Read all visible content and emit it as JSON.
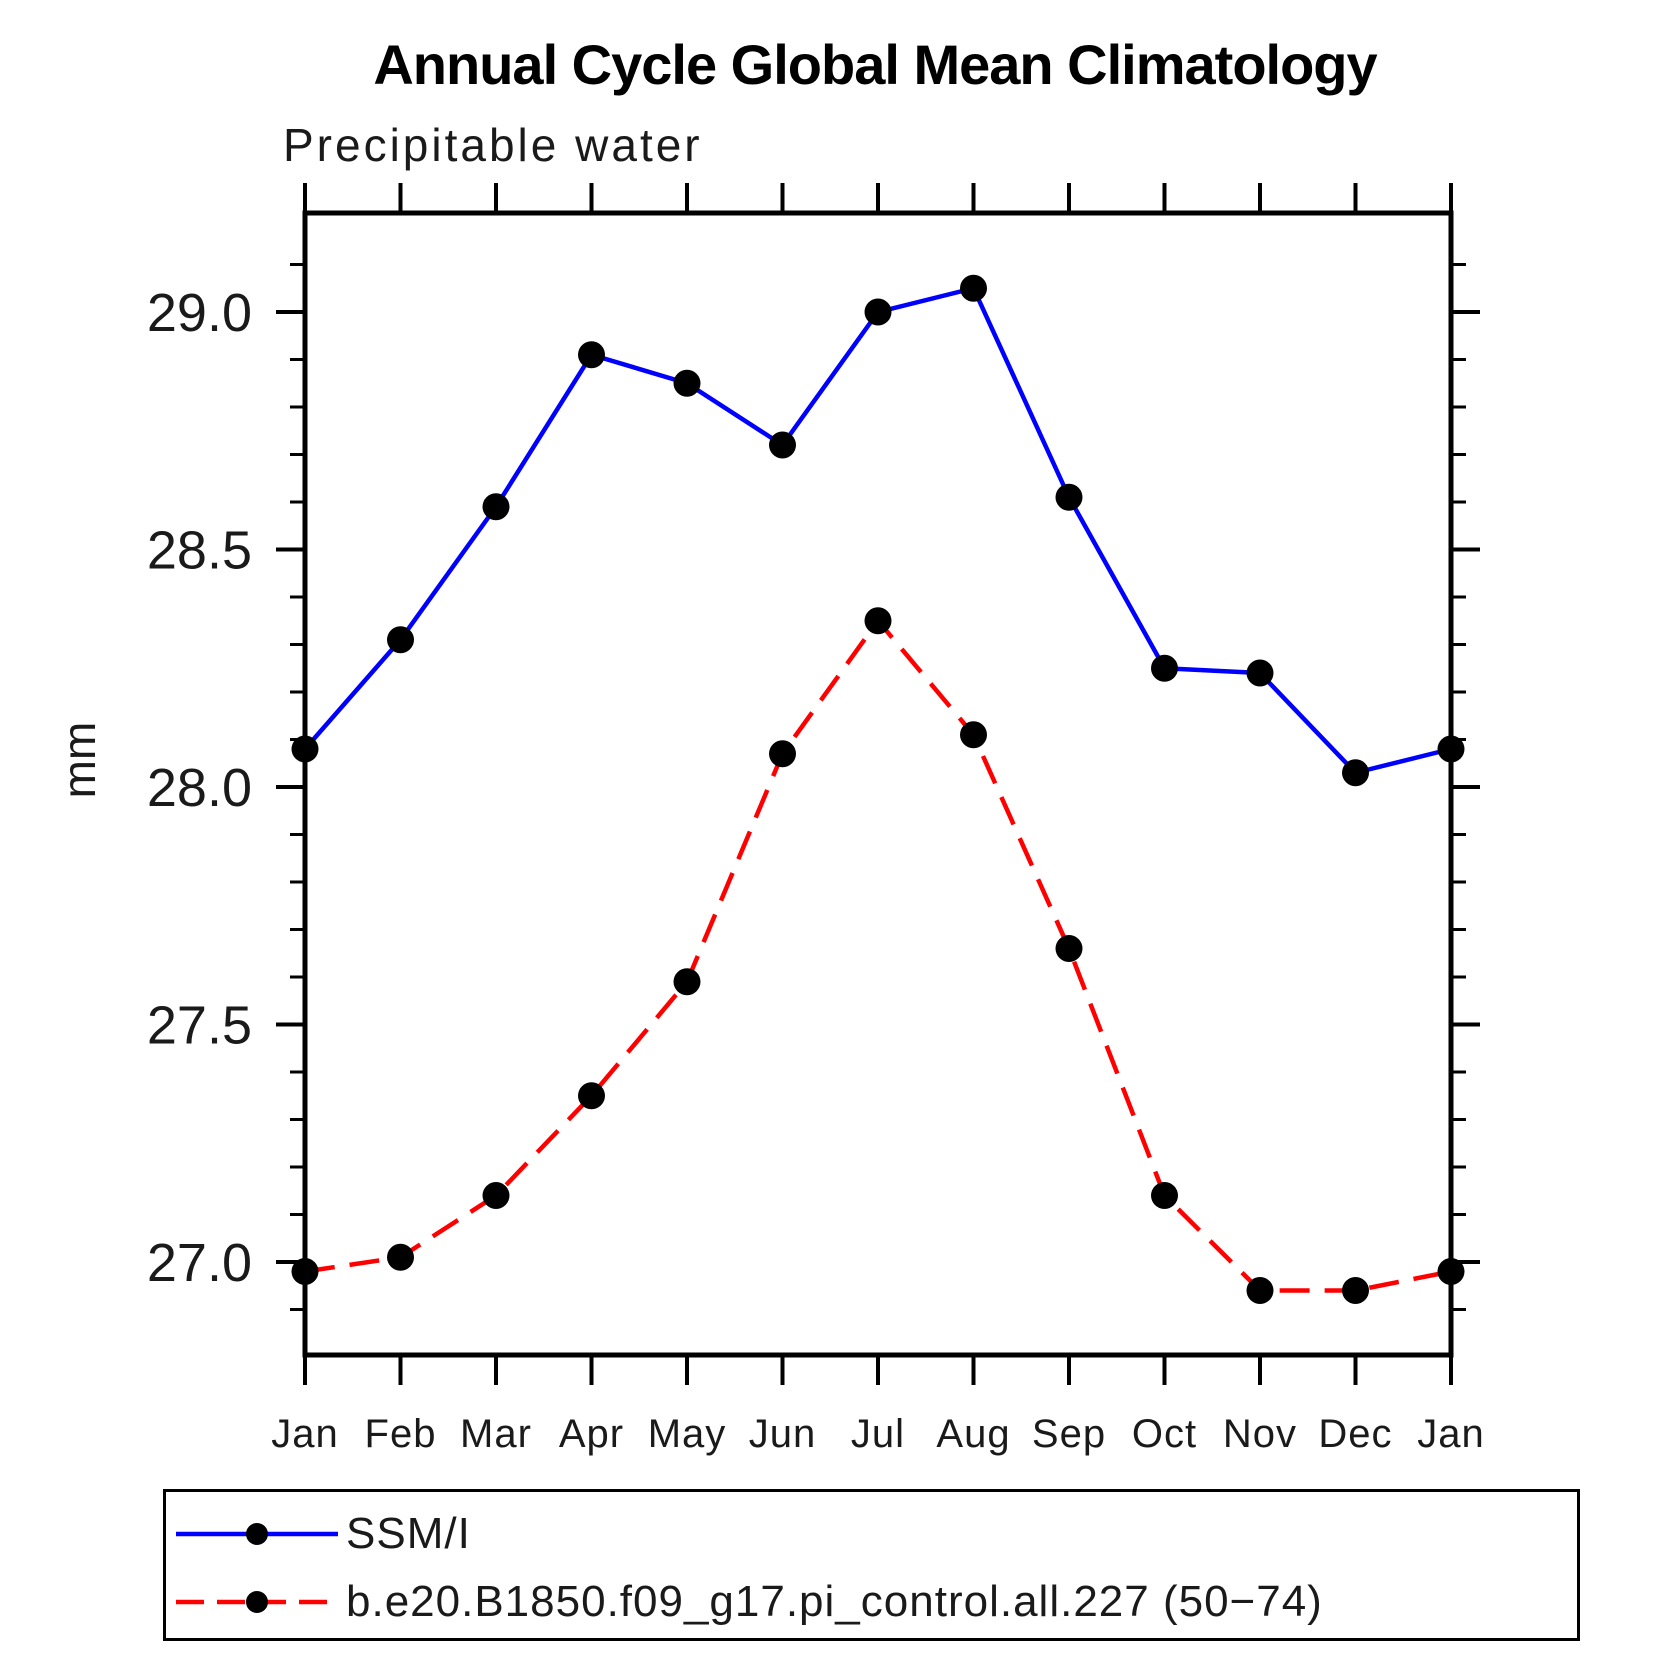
{
  "title": "Annual Cycle Global Mean Climatology",
  "subtitle": "Precipitable water",
  "ylabel": "mm",
  "chart_data": {
    "type": "line",
    "title": "Annual Cycle Global Mean Climatology",
    "subtitle": "Precipitable water",
    "ylabel": "mm",
    "x_categories": [
      "Jan",
      "Feb",
      "Mar",
      "Apr",
      "May",
      "Jun",
      "Jul",
      "Aug",
      "Sep",
      "Oct",
      "Nov",
      "Dec",
      "Jan"
    ],
    "ylim": [
      26.8,
      29.2
    ],
    "yticks_major": [
      29.0,
      28.5,
      28.0,
      27.5,
      27.0
    ],
    "ytick_labels": [
      "29.0",
      "28.5",
      "28.0",
      "27.5",
      "27.0"
    ],
    "yminor_step": 0.1,
    "grid": false,
    "legend_position": "bottom",
    "axis_color": "#000000",
    "series": [
      {
        "name": "SSM/I",
        "color": "#0000ff",
        "style": "solid",
        "marker": "circle",
        "marker_color": "#000000",
        "values": [
          28.08,
          28.31,
          28.59,
          28.91,
          28.85,
          28.72,
          29.0,
          29.05,
          28.61,
          28.25,
          28.24,
          28.03,
          28.08
        ]
      },
      {
        "name": "b.e20.B1850.f09_g17.pi_control.all.227 (50−74)",
        "color": "#ff0000",
        "style": "dashed",
        "marker": "circle",
        "marker_color": "#000000",
        "values": [
          26.98,
          27.01,
          27.14,
          27.35,
          27.59,
          28.07,
          28.35,
          28.11,
          27.66,
          27.14,
          26.94,
          26.94,
          26.98
        ]
      }
    ]
  },
  "legend": {
    "items": [
      {
        "label": "SSM/I"
      },
      {
        "label": "b.e20.B1850.f09_g17.pi_control.all.227 (50−74)"
      }
    ]
  }
}
